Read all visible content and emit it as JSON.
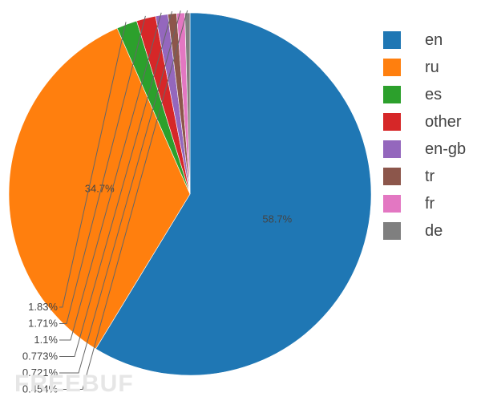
{
  "chart_data": {
    "type": "pie",
    "labels": [
      "en",
      "ru",
      "es",
      "other",
      "en-gb",
      "tr",
      "fr",
      "de"
    ],
    "values": [
      58.7,
      34.7,
      1.83,
      1.71,
      1.1,
      0.773,
      0.721,
      0.454
    ],
    "value_labels": [
      "58.7%",
      "34.7%",
      "1.83%",
      "1.71%",
      "1.1%",
      "0.773%",
      "0.721%",
      "0.454%"
    ],
    "colors": [
      "#1f77b4",
      "#ff7f0e",
      "#2ca02c",
      "#d62728",
      "#9467bd",
      "#8c564b",
      "#e377c2",
      "#7f7f7f"
    ],
    "direction": "clockwise",
    "start": "top",
    "legend_position": "right"
  },
  "watermark": "FREEBUF"
}
